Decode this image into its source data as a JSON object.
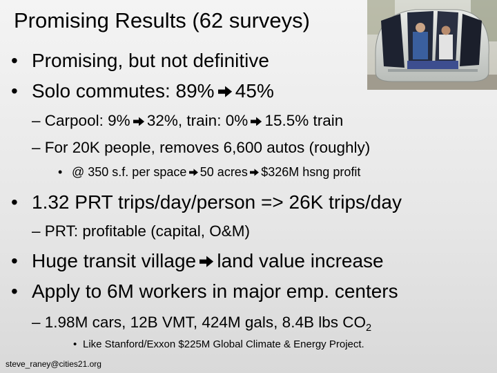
{
  "slide": {
    "title": "Promising Results (62 surveys)",
    "bullet_glyph": "•",
    "dash_glyph": "–",
    "lines": {
      "b1": "Promising, but not definitive",
      "b2a": "Solo commutes: 89%",
      "b2b": "45%",
      "s1a": "Carpool: 9%",
      "s1b": "32%, train: 0%",
      "s1c": "15.5% train",
      "s2": "For 20K people, removes 6,600 autos (roughly)",
      "t1a": "@ 350 s.f. per space",
      "t1b": "50 acres",
      "t1c": "$326M hsng profit",
      "b3": "1.32 PRT trips/day/person => 26K trips/day",
      "s3": "PRT: profitable (capital, O&M)",
      "b4a": "Huge transit village",
      "b4b": "land value increase",
      "b5": "Apply to 6M workers in major emp. centers",
      "s4": "1.98M cars, 12B VMT, 424M gals, 8.4B lbs CO",
      "s4_sub": "2",
      "q1": "Like Stanford/Exxon $225M Global Climate & Energy Project."
    },
    "footer": "steve_raney@cities21.org"
  },
  "photo": {
    "subject": "PRT vehicle cabin with passengers"
  },
  "icons": {
    "arrow": "right-arrow-icon"
  }
}
